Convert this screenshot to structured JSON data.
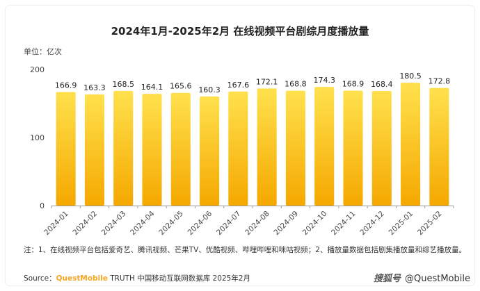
{
  "title": "2024年1月-2025年2月 在线视频平台剧综月度播放量",
  "unit_label": "单位：亿次",
  "note": "注：1、在线视频平台包括爱奇艺、腾讯视频、芒果TV、优酷视频、哔哩哔哩和咪咕视频；2、播放量数据包括剧集播放量和综艺播放量。",
  "source": {
    "prefix": "Source：",
    "brand": "QuestMobile",
    "rest": "TRUTH 中国移动互联网数据库 2025年2月"
  },
  "watermark": {
    "logo": "搜狐号",
    "text": "@QuestMobile"
  },
  "colors": {
    "bar_top": "#FFE14D",
    "bar_bottom": "#F5A800",
    "axis": "#999999"
  },
  "chart_data": {
    "type": "bar",
    "categories": [
      "2024-01",
      "2024-02",
      "2024-03",
      "2024-04",
      "2024-05",
      "2024-06",
      "2024-07",
      "2024-08",
      "2024-09",
      "2024-10",
      "2024-11",
      "2024-12",
      "2025-01",
      "2025-02"
    ],
    "values": [
      166.9,
      163.3,
      168.5,
      164.1,
      165.6,
      160.3,
      167.6,
      172.1,
      168.8,
      174.3,
      168.9,
      168.4,
      180.5,
      172.8
    ],
    "value_labels": [
      "166.9",
      "163.3",
      "168.5",
      "164.1",
      "165.6",
      "160.3",
      "167.6",
      "172.1",
      "168.8",
      "174.3",
      "168.9",
      "168.4",
      "180.5",
      "172.8"
    ],
    "title": "2024年1月-2025年2月 在线视频平台剧综月度播放量",
    "xlabel": "",
    "ylabel": "单位：亿次",
    "ylim": [
      0,
      200
    ],
    "yticks": [
      "0",
      "100",
      "200"
    ],
    "grid": false,
    "legend": "none"
  }
}
